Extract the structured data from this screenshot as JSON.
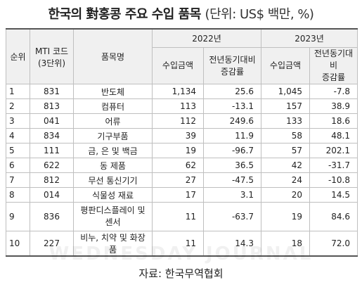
{
  "title": "한국의 對홍콩 주요 수입 품목",
  "unit": "(단위: US$ 백만, %)",
  "headers": {
    "rank": "순위",
    "mti_line1": "MTI 코드",
    "mti_line2": "(3단위)",
    "item": "품목명",
    "year1": "2022년",
    "year2": "2023년",
    "import_amount": "수입금액",
    "yoy_line1": "전년동기대비",
    "yoy_line2": "증감률"
  },
  "rows": [
    {
      "rank": "1",
      "code": "831",
      "item": "반도체",
      "amt2022": "1,134",
      "chg2022": "25.6",
      "amt2023": "1,045",
      "chg2023": "-7.8"
    },
    {
      "rank": "2",
      "code": "813",
      "item": "컴퓨터",
      "amt2022": "113",
      "chg2022": "-13.1",
      "amt2023": "157",
      "chg2023": "38.9"
    },
    {
      "rank": "3",
      "code": "041",
      "item": "어류",
      "amt2022": "112",
      "chg2022": "249.6",
      "amt2023": "133",
      "chg2023": "18.6"
    },
    {
      "rank": "4",
      "code": "834",
      "item": "기구부품",
      "amt2022": "39",
      "chg2022": "11.9",
      "amt2023": "58",
      "chg2023": "48.1"
    },
    {
      "rank": "5",
      "code": "111",
      "item": "금, 은 및 백금",
      "amt2022": "19",
      "chg2022": "-96.7",
      "amt2023": "57",
      "chg2023": "202.1"
    },
    {
      "rank": "6",
      "code": "622",
      "item": "동 제품",
      "amt2022": "62",
      "chg2022": "36.5",
      "amt2023": "42",
      "chg2023": "-31.7"
    },
    {
      "rank": "7",
      "code": "812",
      "item": "무선 통신기기",
      "amt2022": "27",
      "chg2022": "-47.5",
      "amt2023": "24",
      "chg2023": "-10.8"
    },
    {
      "rank": "8",
      "code": "014",
      "item": "식물성 재료",
      "amt2022": "17",
      "chg2022": "3.1",
      "amt2023": "20",
      "chg2023": "14.5"
    },
    {
      "rank": "9",
      "code": "836",
      "item_line1": "평판디스플레이 및",
      "item_line2": "센서",
      "amt2022": "11",
      "chg2022": "-63.7",
      "amt2023": "19",
      "chg2023": "84.6"
    },
    {
      "rank": "10",
      "code": "227",
      "item": "비누, 치약 및 화장품",
      "amt2022": "11",
      "chg2022": "14.3",
      "amt2023": "18",
      "chg2023": "72.0"
    }
  ],
  "watermark": "WEDNESDAY JOURNAL",
  "source": "자료: 한국무역협회"
}
